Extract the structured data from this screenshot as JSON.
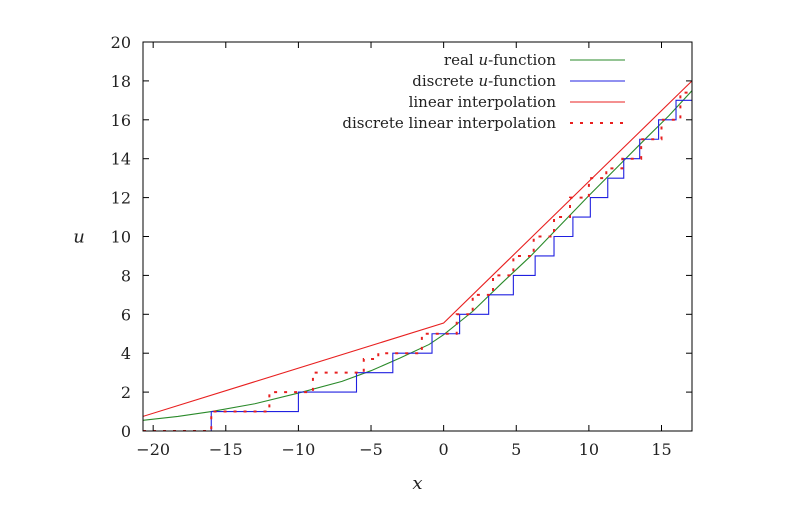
{
  "chart_data": {
    "type": "line",
    "xlabel": "x",
    "ylabel": "u",
    "xlim": [
      -20.7,
      17.1
    ],
    "ylim": [
      0,
      20
    ],
    "x_ticks": [
      -20,
      -15,
      -10,
      -5,
      0,
      5,
      10,
      15
    ],
    "x_tick_labels": [
      "−20",
      "−15",
      "−10",
      "−5",
      "0",
      "5",
      "10",
      "15"
    ],
    "y_ticks": [
      0,
      2,
      4,
      6,
      8,
      10,
      12,
      14,
      16,
      18,
      20
    ],
    "y_tick_labels": [
      "0",
      "2",
      "4",
      "6",
      "8",
      "10",
      "12",
      "14",
      "16",
      "18",
      "20"
    ],
    "legend_position": "top-right",
    "series": [
      {
        "name": "real u-function",
        "legend_parts": [
          "real ",
          "u",
          "-function"
        ],
        "color": "#2a8a2a",
        "style": "solid",
        "x": [
          -20.7,
          -18.3,
          -16.0,
          -13.0,
          -10.0,
          -7.0,
          -5.0,
          -3.0,
          -1.0,
          0.0,
          2.0,
          4.0,
          6.0,
          8.0,
          10.0,
          12.0,
          14.0,
          15.5,
          17.1
        ],
        "y": [
          0.55,
          0.75,
          1.0,
          1.4,
          1.95,
          2.55,
          3.1,
          3.75,
          4.45,
          4.95,
          6.15,
          7.6,
          9.0,
          10.55,
          12.1,
          13.6,
          15.1,
          16.2,
          17.5
        ]
      },
      {
        "name": "discrete u-function",
        "legend_parts": [
          "discrete ",
          "u",
          "-function"
        ],
        "color": "#2020e0",
        "style": "step",
        "x": [
          -20.7,
          -16.0,
          -16.0,
          -10.0,
          -10.0,
          -6.0,
          -6.0,
          -3.5,
          -3.5,
          -0.8,
          -0.8,
          1.1,
          1.1,
          3.1,
          3.1,
          4.8,
          4.8,
          6.3,
          6.3,
          7.6,
          7.6,
          8.9,
          8.9,
          10.1,
          10.1,
          11.3,
          11.3,
          12.4,
          12.4,
          13.5,
          13.5,
          14.8,
          14.8,
          16.0,
          16.0,
          17.1
        ],
        "y": [
          0,
          0,
          1,
          1,
          2,
          2,
          3,
          3,
          4,
          4,
          5,
          5,
          6,
          6,
          7,
          7,
          8,
          8,
          9,
          9,
          10,
          10,
          11,
          11,
          12,
          12,
          13,
          13,
          14,
          14,
          15,
          15,
          16,
          16,
          17,
          17
        ]
      },
      {
        "name": "linear interpolation",
        "legend_parts": [
          "linear interpolation"
        ],
        "color": "#e82020",
        "style": "solid",
        "x": [
          -20.7,
          0.0,
          17.1
        ],
        "y": [
          0.75,
          5.55,
          18.0
        ]
      },
      {
        "name": "discrete linear interpolation",
        "legend_parts": [
          "discrete linear interpolation"
        ],
        "color": "#e82020",
        "style": "dashed",
        "x": [
          -20.7,
          -16.0,
          -16.0,
          -12.0,
          -12.0,
          -9.0,
          -9.0,
          -5.5,
          -5.5,
          -4.5,
          -4.5,
          -1.5,
          -1.5,
          0.9,
          0.9,
          2.0,
          2.0,
          3.4,
          3.4,
          4.8,
          4.8,
          6.2,
          6.2,
          7.6,
          7.6,
          8.7,
          8.7,
          10.0,
          10.0,
          11.2,
          11.2,
          12.3,
          12.3,
          13.6,
          13.6,
          15.0,
          15.0,
          16.3,
          16.3,
          17.1
        ],
        "y": [
          0,
          0,
          1,
          1,
          2,
          2,
          3,
          3,
          3.7,
          3.7,
          4,
          4,
          5,
          5,
          6,
          6,
          7,
          7,
          8,
          8,
          9,
          9,
          10,
          10,
          11,
          11,
          12,
          12,
          13,
          13,
          13.5,
          13.5,
          14,
          14,
          15,
          15,
          16,
          16,
          17.4,
          17.4
        ]
      }
    ]
  }
}
